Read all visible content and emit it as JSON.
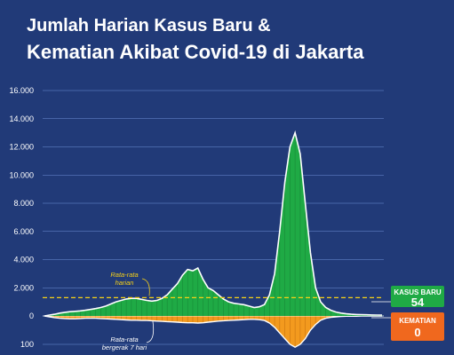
{
  "title_line1": "Jumlah Harian Kasus Baru &",
  "title_line2": "Kematian Akibat Covid-19 di Jakarta",
  "chart_data": {
    "type": "area",
    "y_ticks_cases": [
      "16.000",
      "14.000",
      "12.000",
      "10.000",
      "8.000",
      "6.000",
      "4.000",
      "2.000",
      "0"
    ],
    "y_ticks_deaths": [
      "100"
    ],
    "ylim_cases": [
      0,
      16000
    ],
    "grid": true,
    "reference_line": {
      "label_line1": "Rata-rata",
      "label_line2": "harian",
      "value": 1300
    },
    "avg_label_line1": "Rata-rata",
    "avg_label_line2": "bergerak 7 hari",
    "colors": {
      "cases": "#1faa45",
      "deaths": "#f39a1e",
      "reference": "#f7d117",
      "moving_average": "#ffffff",
      "badge_cases": "#1faa45",
      "badge_deaths": "#f0681e"
    },
    "latest": {
      "cases_label": "KASUS BARU",
      "cases_value": "54",
      "deaths_label": "KEMATIAN",
      "deaths_value": "0"
    },
    "series": [
      {
        "name": "Kasus Baru",
        "values": [
          0,
          60,
          120,
          200,
          260,
          300,
          330,
          360,
          400,
          460,
          520,
          600,
          700,
          850,
          1000,
          1100,
          1200,
          1250,
          1250,
          1180,
          1100,
          1050,
          1100,
          1250,
          1500,
          1900,
          2300,
          2900,
          3300,
          3200,
          3400,
          2600,
          2000,
          1800,
          1500,
          1200,
          1000,
          900,
          850,
          800,
          700,
          600,
          650,
          800,
          1500,
          3000,
          6000,
          9500,
          12000,
          13000,
          11500,
          8000,
          4500,
          2000,
          1000,
          600,
          400,
          280,
          200,
          150,
          120,
          100,
          90,
          80,
          70,
          60,
          54
        ]
      },
      {
        "name": "Kematian",
        "values": [
          0,
          3,
          6,
          8,
          9,
          10,
          10,
          9,
          8,
          8,
          8,
          9,
          10,
          11,
          12,
          13,
          14,
          15,
          15,
          16,
          16,
          17,
          18,
          19,
          20,
          21,
          22,
          23,
          24,
          24,
          25,
          24,
          22,
          20,
          18,
          17,
          16,
          15,
          14,
          13,
          12,
          12,
          13,
          16,
          25,
          40,
          60,
          80,
          100,
          110,
          100,
          80,
          50,
          30,
          15,
          8,
          5,
          3,
          2,
          1,
          1,
          1,
          0,
          0,
          0,
          0,
          0
        ]
      }
    ]
  }
}
